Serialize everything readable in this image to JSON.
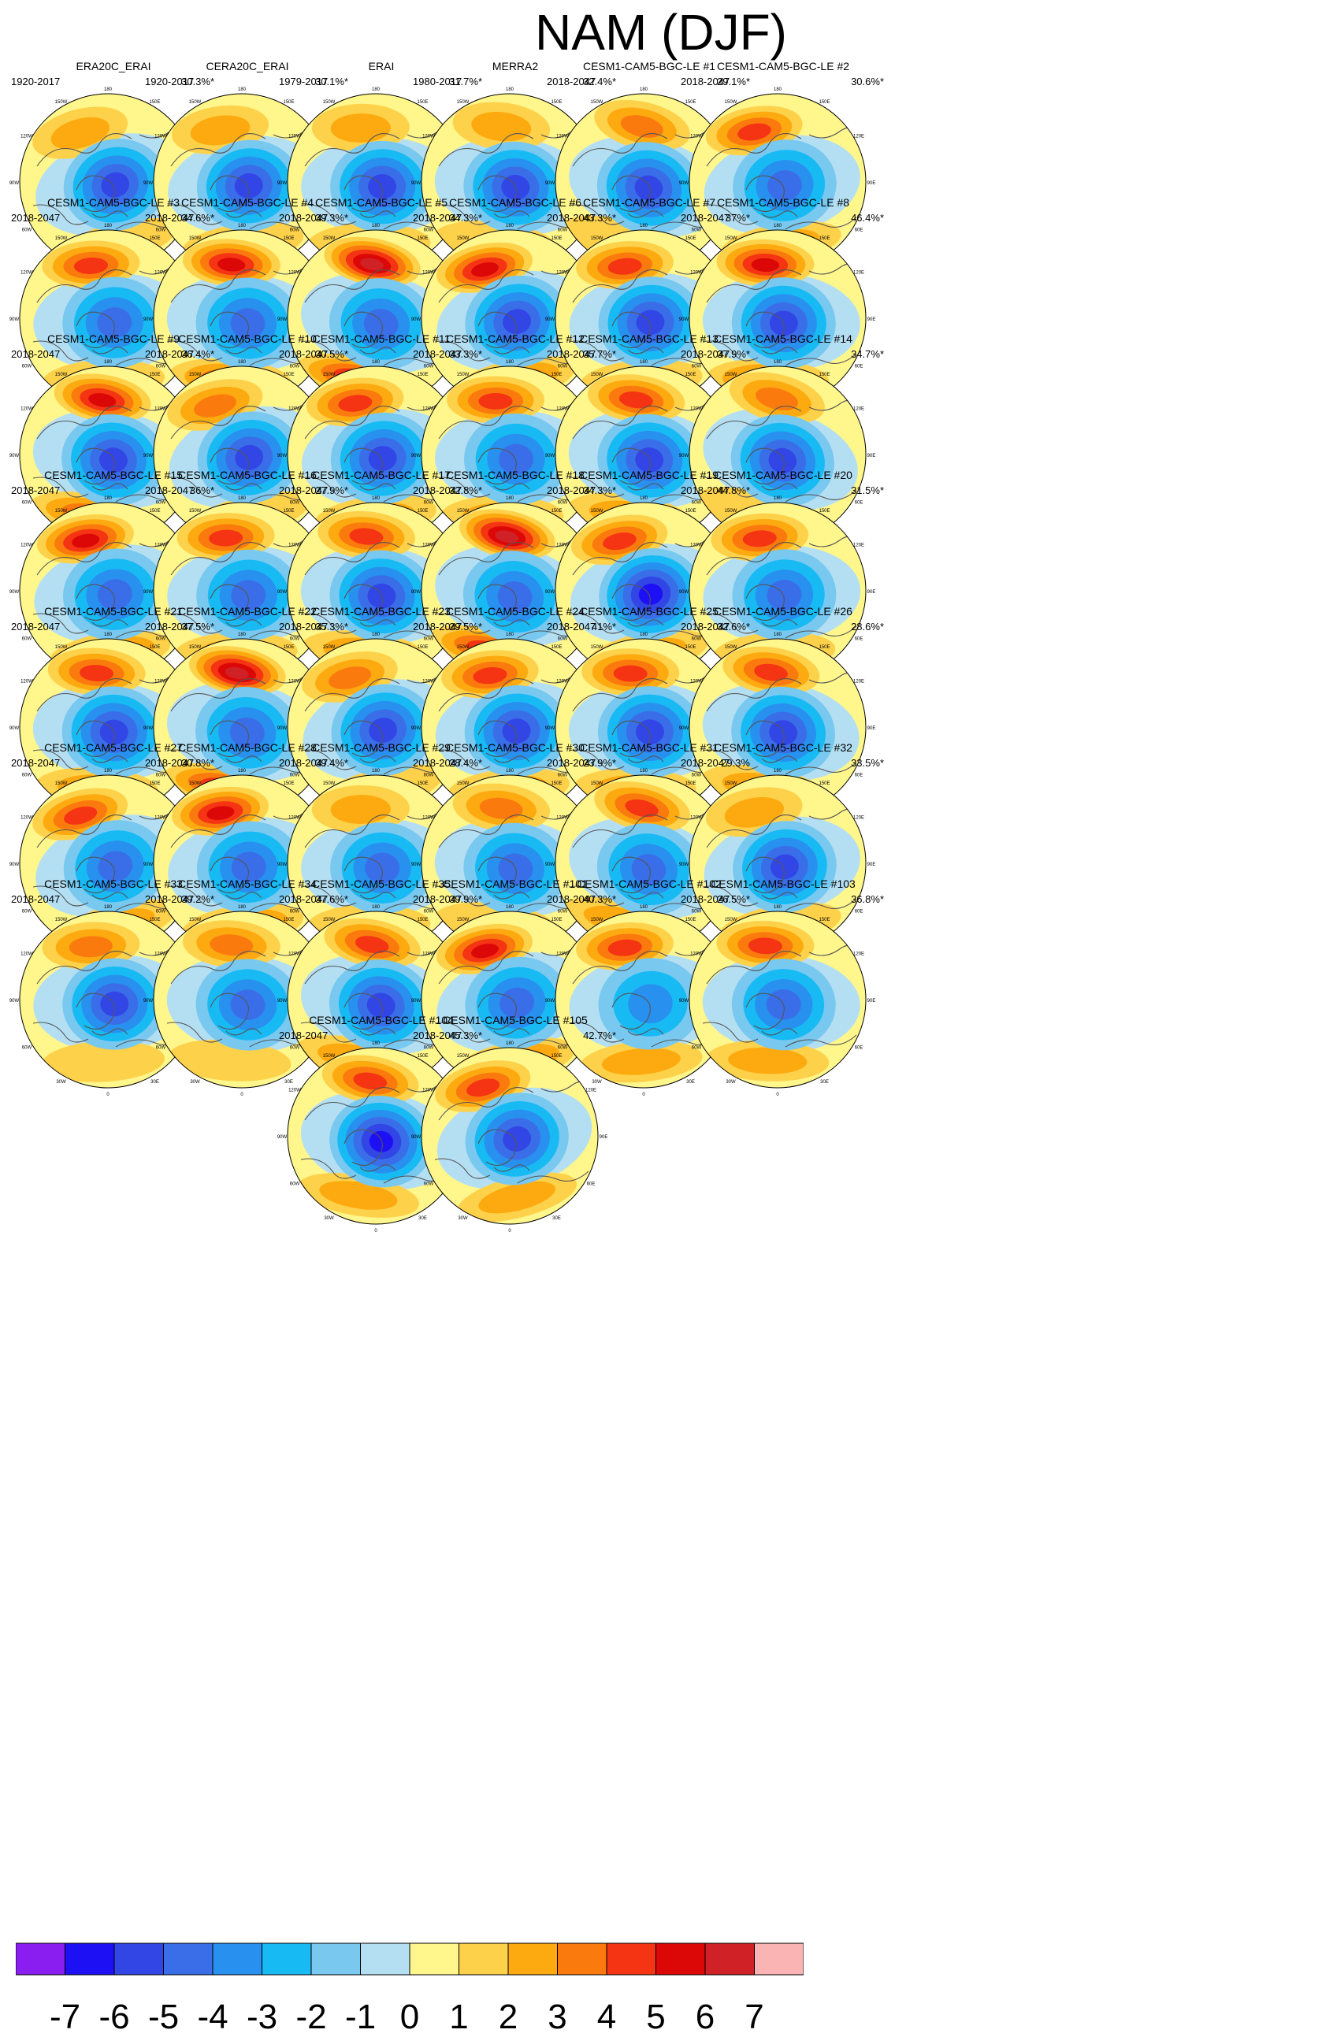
{
  "title": "NAM (DJF)",
  "map": {
    "lon_labels": [
      "180",
      "150W",
      "150E",
      "120W",
      "120E",
      "90W",
      "90E",
      "60W",
      "60E",
      "30W",
      "30E",
      "0"
    ]
  },
  "panels": [
    {
      "name": "ERA20C_ERAI",
      "years": "1920-2017",
      "pct": "30.3%*"
    },
    {
      "name": "CERA20C_ERAI",
      "years": "1920-2017",
      "pct": "30.1%*"
    },
    {
      "name": "ERAI",
      "years": "1979-2017",
      "pct": "31.7%*"
    },
    {
      "name": "MERRA2",
      "years": "1980-2017",
      "pct": "32.4%*"
    },
    {
      "name": "CESM1-CAM5-BGC-LE #1",
      "years": "2018-2047",
      "pct": "29.1%*"
    },
    {
      "name": "CESM1-CAM5-BGC-LE #2",
      "years": "2018-2047",
      "pct": "30.6%*"
    },
    {
      "name": "CESM1-CAM5-BGC-LE #3",
      "years": "2018-2047",
      "pct": "34.6%*"
    },
    {
      "name": "CESM1-CAM5-BGC-LE #4",
      "years": "2018-2047",
      "pct": "39.3%*"
    },
    {
      "name": "CESM1-CAM5-BGC-LE #5",
      "years": "2018-2047",
      "pct": "34.3%*"
    },
    {
      "name": "CESM1-CAM5-BGC-LE #6",
      "years": "2018-2047",
      "pct": "43.3%*"
    },
    {
      "name": "CESM1-CAM5-BGC-LE #7",
      "years": "2018-2047",
      "pct": "37%*"
    },
    {
      "name": "CESM1-CAM5-BGC-LE #8",
      "years": "2018-2047",
      "pct": "46.4%*"
    },
    {
      "name": "CESM1-CAM5-BGC-LE #9",
      "years": "2018-2047",
      "pct": "36.4%*"
    },
    {
      "name": "CESM1-CAM5-BGC-LE #10",
      "years": "2018-2047",
      "pct": "30.5%*"
    },
    {
      "name": "CESM1-CAM5-BGC-LE #11",
      "years": "2018-2047",
      "pct": "33.3%*"
    },
    {
      "name": "CESM1-CAM5-BGC-LE #12",
      "years": "2018-2047",
      "pct": "35.7%*"
    },
    {
      "name": "CESM1-CAM5-BGC-LE #13",
      "years": "2018-2047",
      "pct": "37.9%*"
    },
    {
      "name": "CESM1-CAM5-BGC-LE #14",
      "years": "2018-2047",
      "pct": "34.7%*"
    },
    {
      "name": "CESM1-CAM5-BGC-LE #15",
      "years": "2018-2047",
      "pct": "36%*"
    },
    {
      "name": "CESM1-CAM5-BGC-LE #16",
      "years": "2018-2047",
      "pct": "27.9%*"
    },
    {
      "name": "CESM1-CAM5-BGC-LE #17",
      "years": "2018-2047",
      "pct": "32.8%*"
    },
    {
      "name": "CESM1-CAM5-BGC-LE #18",
      "years": "2018-2047",
      "pct": "34.3%*"
    },
    {
      "name": "CESM1-CAM5-BGC-LE #19",
      "years": "2018-2047",
      "pct": "44.8%*"
    },
    {
      "name": "CESM1-CAM5-BGC-LE #20",
      "years": "2018-2047",
      "pct": "31.5%*"
    },
    {
      "name": "CESM1-CAM5-BGC-LE #21",
      "years": "2018-2047",
      "pct": "37.5%*"
    },
    {
      "name": "CESM1-CAM5-BGC-LE #22",
      "years": "2018-2047",
      "pct": "35.3%*"
    },
    {
      "name": "CESM1-CAM5-BGC-LE #23",
      "years": "2018-2047",
      "pct": "29.5%*"
    },
    {
      "name": "CESM1-CAM5-BGC-LE #24",
      "years": "2018-2047",
      "pct": "41%*"
    },
    {
      "name": "CESM1-CAM5-BGC-LE #25",
      "years": "2018-2047",
      "pct": "32.6%*"
    },
    {
      "name": "CESM1-CAM5-BGC-LE #26",
      "years": "2018-2047",
      "pct": "28.6%*"
    },
    {
      "name": "CESM1-CAM5-BGC-LE #27",
      "years": "2018-2047",
      "pct": "30.8%*"
    },
    {
      "name": "CESM1-CAM5-BGC-LE #28",
      "years": "2018-2047",
      "pct": "39.4%*"
    },
    {
      "name": "CESM1-CAM5-BGC-LE #29",
      "years": "2018-2047",
      "pct": "28.4%*"
    },
    {
      "name": "CESM1-CAM5-BGC-LE #30",
      "years": "2018-2047",
      "pct": "23.9%*"
    },
    {
      "name": "CESM1-CAM5-BGC-LE #31",
      "years": "2018-2047",
      "pct": "29.3%"
    },
    {
      "name": "CESM1-CAM5-BGC-LE #32",
      "years": "2018-2047",
      "pct": "33.5%*"
    },
    {
      "name": "CESM1-CAM5-BGC-LE #33",
      "years": "2018-2047",
      "pct": "39.2%*"
    },
    {
      "name": "CESM1-CAM5-BGC-LE #34",
      "years": "2018-2047",
      "pct": "37.6%*"
    },
    {
      "name": "CESM1-CAM5-BGC-LE #35",
      "years": "2018-2047",
      "pct": "39.9%*"
    },
    {
      "name": "CESM1-CAM5-BGC-LE #101",
      "years": "2018-2047",
      "pct": "40.3%*"
    },
    {
      "name": "CESM1-CAM5-BGC-LE #102",
      "years": "2018-2047",
      "pct": "26.5%*"
    },
    {
      "name": "CESM1-CAM5-BGC-LE #103",
      "years": "2018-2047",
      "pct": "36.8%*"
    },
    {
      "name": "CESM1-CAM5-BGC-LE #104",
      "years": "2018-2047",
      "pct": "45.3%*"
    },
    {
      "name": "CESM1-CAM5-BGC-LE #105",
      "years": "2018-2047",
      "pct": "42.7%*"
    }
  ],
  "colorbar": {
    "labels": [
      "-7",
      "-6",
      "-5",
      "-4",
      "-3",
      "-2",
      "-1",
      "0",
      "1",
      "2",
      "3",
      "4",
      "5",
      "6",
      "7"
    ],
    "colors": [
      "#8a1ef0",
      "#1e10f5",
      "#3246e6",
      "#3a6ee8",
      "#2890ee",
      "#18baf4",
      "#78c8f0",
      "#b4dff2",
      "#fff68c",
      "#fed14a",
      "#fdaa10",
      "#fb7a0e",
      "#f43412",
      "#dc0808",
      "#d02226",
      "#fbb4b4"
    ]
  }
}
